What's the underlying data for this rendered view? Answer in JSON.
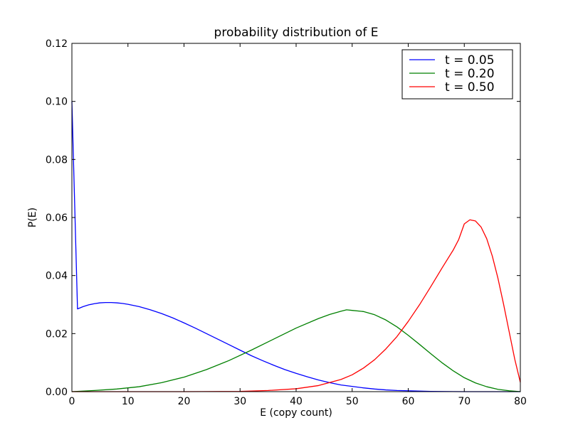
{
  "chart_data": {
    "type": "line",
    "title": "probability distribution of E",
    "xlabel": "E (copy count)",
    "ylabel": "P(E)",
    "xlim": [
      0,
      80
    ],
    "ylim": [
      0,
      0.12
    ],
    "x_ticks": [
      0,
      10,
      20,
      30,
      40,
      50,
      60,
      70,
      80
    ],
    "y_ticks": [
      0.0,
      0.02,
      0.04,
      0.06,
      0.08,
      0.1,
      0.12
    ],
    "x_tick_labels": [
      "0",
      "10",
      "20",
      "30",
      "40",
      "50",
      "60",
      "70",
      "80"
    ],
    "y_tick_labels": [
      "0.00",
      "0.02",
      "0.04",
      "0.06",
      "0.08",
      "0.10",
      "0.12"
    ],
    "grid": false,
    "legend_position": "top-right",
    "series": [
      {
        "name": "t = 0.05",
        "color": "#0000ff",
        "points": [
          [
            0,
            0.1
          ],
          [
            1,
            0.0285
          ],
          [
            2,
            0.0293
          ],
          [
            3,
            0.0299
          ],
          [
            4,
            0.0303
          ],
          [
            5,
            0.0306
          ],
          [
            6,
            0.0307
          ],
          [
            7,
            0.0307
          ],
          [
            8,
            0.0306
          ],
          [
            9,
            0.0304
          ],
          [
            10,
            0.0301
          ],
          [
            12,
            0.0293
          ],
          [
            14,
            0.0282
          ],
          [
            16,
            0.0269
          ],
          [
            18,
            0.0254
          ],
          [
            20,
            0.0237
          ],
          [
            22,
            0.0219
          ],
          [
            24,
            0.02
          ],
          [
            26,
            0.0181
          ],
          [
            28,
            0.0162
          ],
          [
            30,
            0.0143
          ],
          [
            32,
            0.0124
          ],
          [
            34,
            0.0107
          ],
          [
            36,
            0.0091
          ],
          [
            38,
            0.0076
          ],
          [
            40,
            0.0063
          ],
          [
            42,
            0.0051
          ],
          [
            44,
            0.004
          ],
          [
            46,
            0.0031
          ],
          [
            48,
            0.0023
          ],
          [
            50,
            0.0018
          ],
          [
            52,
            0.0013
          ],
          [
            54,
            0.0009
          ],
          [
            56,
            0.0006
          ],
          [
            58,
            0.0004
          ],
          [
            60,
            0.0003
          ],
          [
            64,
            0.0001
          ],
          [
            70,
            0.0
          ],
          [
            80,
            0.0
          ]
        ]
      },
      {
        "name": "t = 0.20",
        "color": "#008000",
        "points": [
          [
            0,
            0.0
          ],
          [
            4,
            0.0004
          ],
          [
            8,
            0.0009
          ],
          [
            12,
            0.0017
          ],
          [
            16,
            0.0031
          ],
          [
            20,
            0.005
          ],
          [
            24,
            0.0076
          ],
          [
            28,
            0.0107
          ],
          [
            32,
            0.0143
          ],
          [
            36,
            0.0181
          ],
          [
            40,
            0.0219
          ],
          [
            44,
            0.0252
          ],
          [
            46,
            0.0266
          ],
          [
            48,
            0.0277
          ],
          [
            49,
            0.0282
          ],
          [
            50,
            0.028
          ],
          [
            52,
            0.0276
          ],
          [
            54,
            0.0265
          ],
          [
            56,
            0.0247
          ],
          [
            58,
            0.0223
          ],
          [
            60,
            0.0194
          ],
          [
            62,
            0.0163
          ],
          [
            64,
            0.0131
          ],
          [
            66,
            0.01
          ],
          [
            68,
            0.0072
          ],
          [
            70,
            0.0048
          ],
          [
            72,
            0.003
          ],
          [
            74,
            0.0017
          ],
          [
            76,
            0.0008
          ],
          [
            78,
            0.0003
          ],
          [
            80,
            0.0
          ]
        ]
      },
      {
        "name": "t = 0.50",
        "color": "#ff0000",
        "points": [
          [
            0,
            0.0
          ],
          [
            20,
            0.0
          ],
          [
            30,
            0.0001
          ],
          [
            35,
            0.0004
          ],
          [
            40,
            0.001
          ],
          [
            44,
            0.0021
          ],
          [
            48,
            0.0042
          ],
          [
            50,
            0.0058
          ],
          [
            52,
            0.0081
          ],
          [
            54,
            0.011
          ],
          [
            56,
            0.0147
          ],
          [
            58,
            0.019
          ],
          [
            60,
            0.0242
          ],
          [
            62,
            0.0299
          ],
          [
            64,
            0.0361
          ],
          [
            66,
            0.0425
          ],
          [
            68,
            0.0487
          ],
          [
            69,
            0.0524
          ],
          [
            70,
            0.0578
          ],
          [
            71,
            0.0592
          ],
          [
            72,
            0.0588
          ],
          [
            73,
            0.0567
          ],
          [
            74,
            0.0527
          ],
          [
            75,
            0.0467
          ],
          [
            76,
            0.0391
          ],
          [
            77,
            0.0302
          ],
          [
            78,
            0.0207
          ],
          [
            79,
            0.0112
          ],
          [
            80,
            0.0032
          ]
        ]
      }
    ]
  }
}
